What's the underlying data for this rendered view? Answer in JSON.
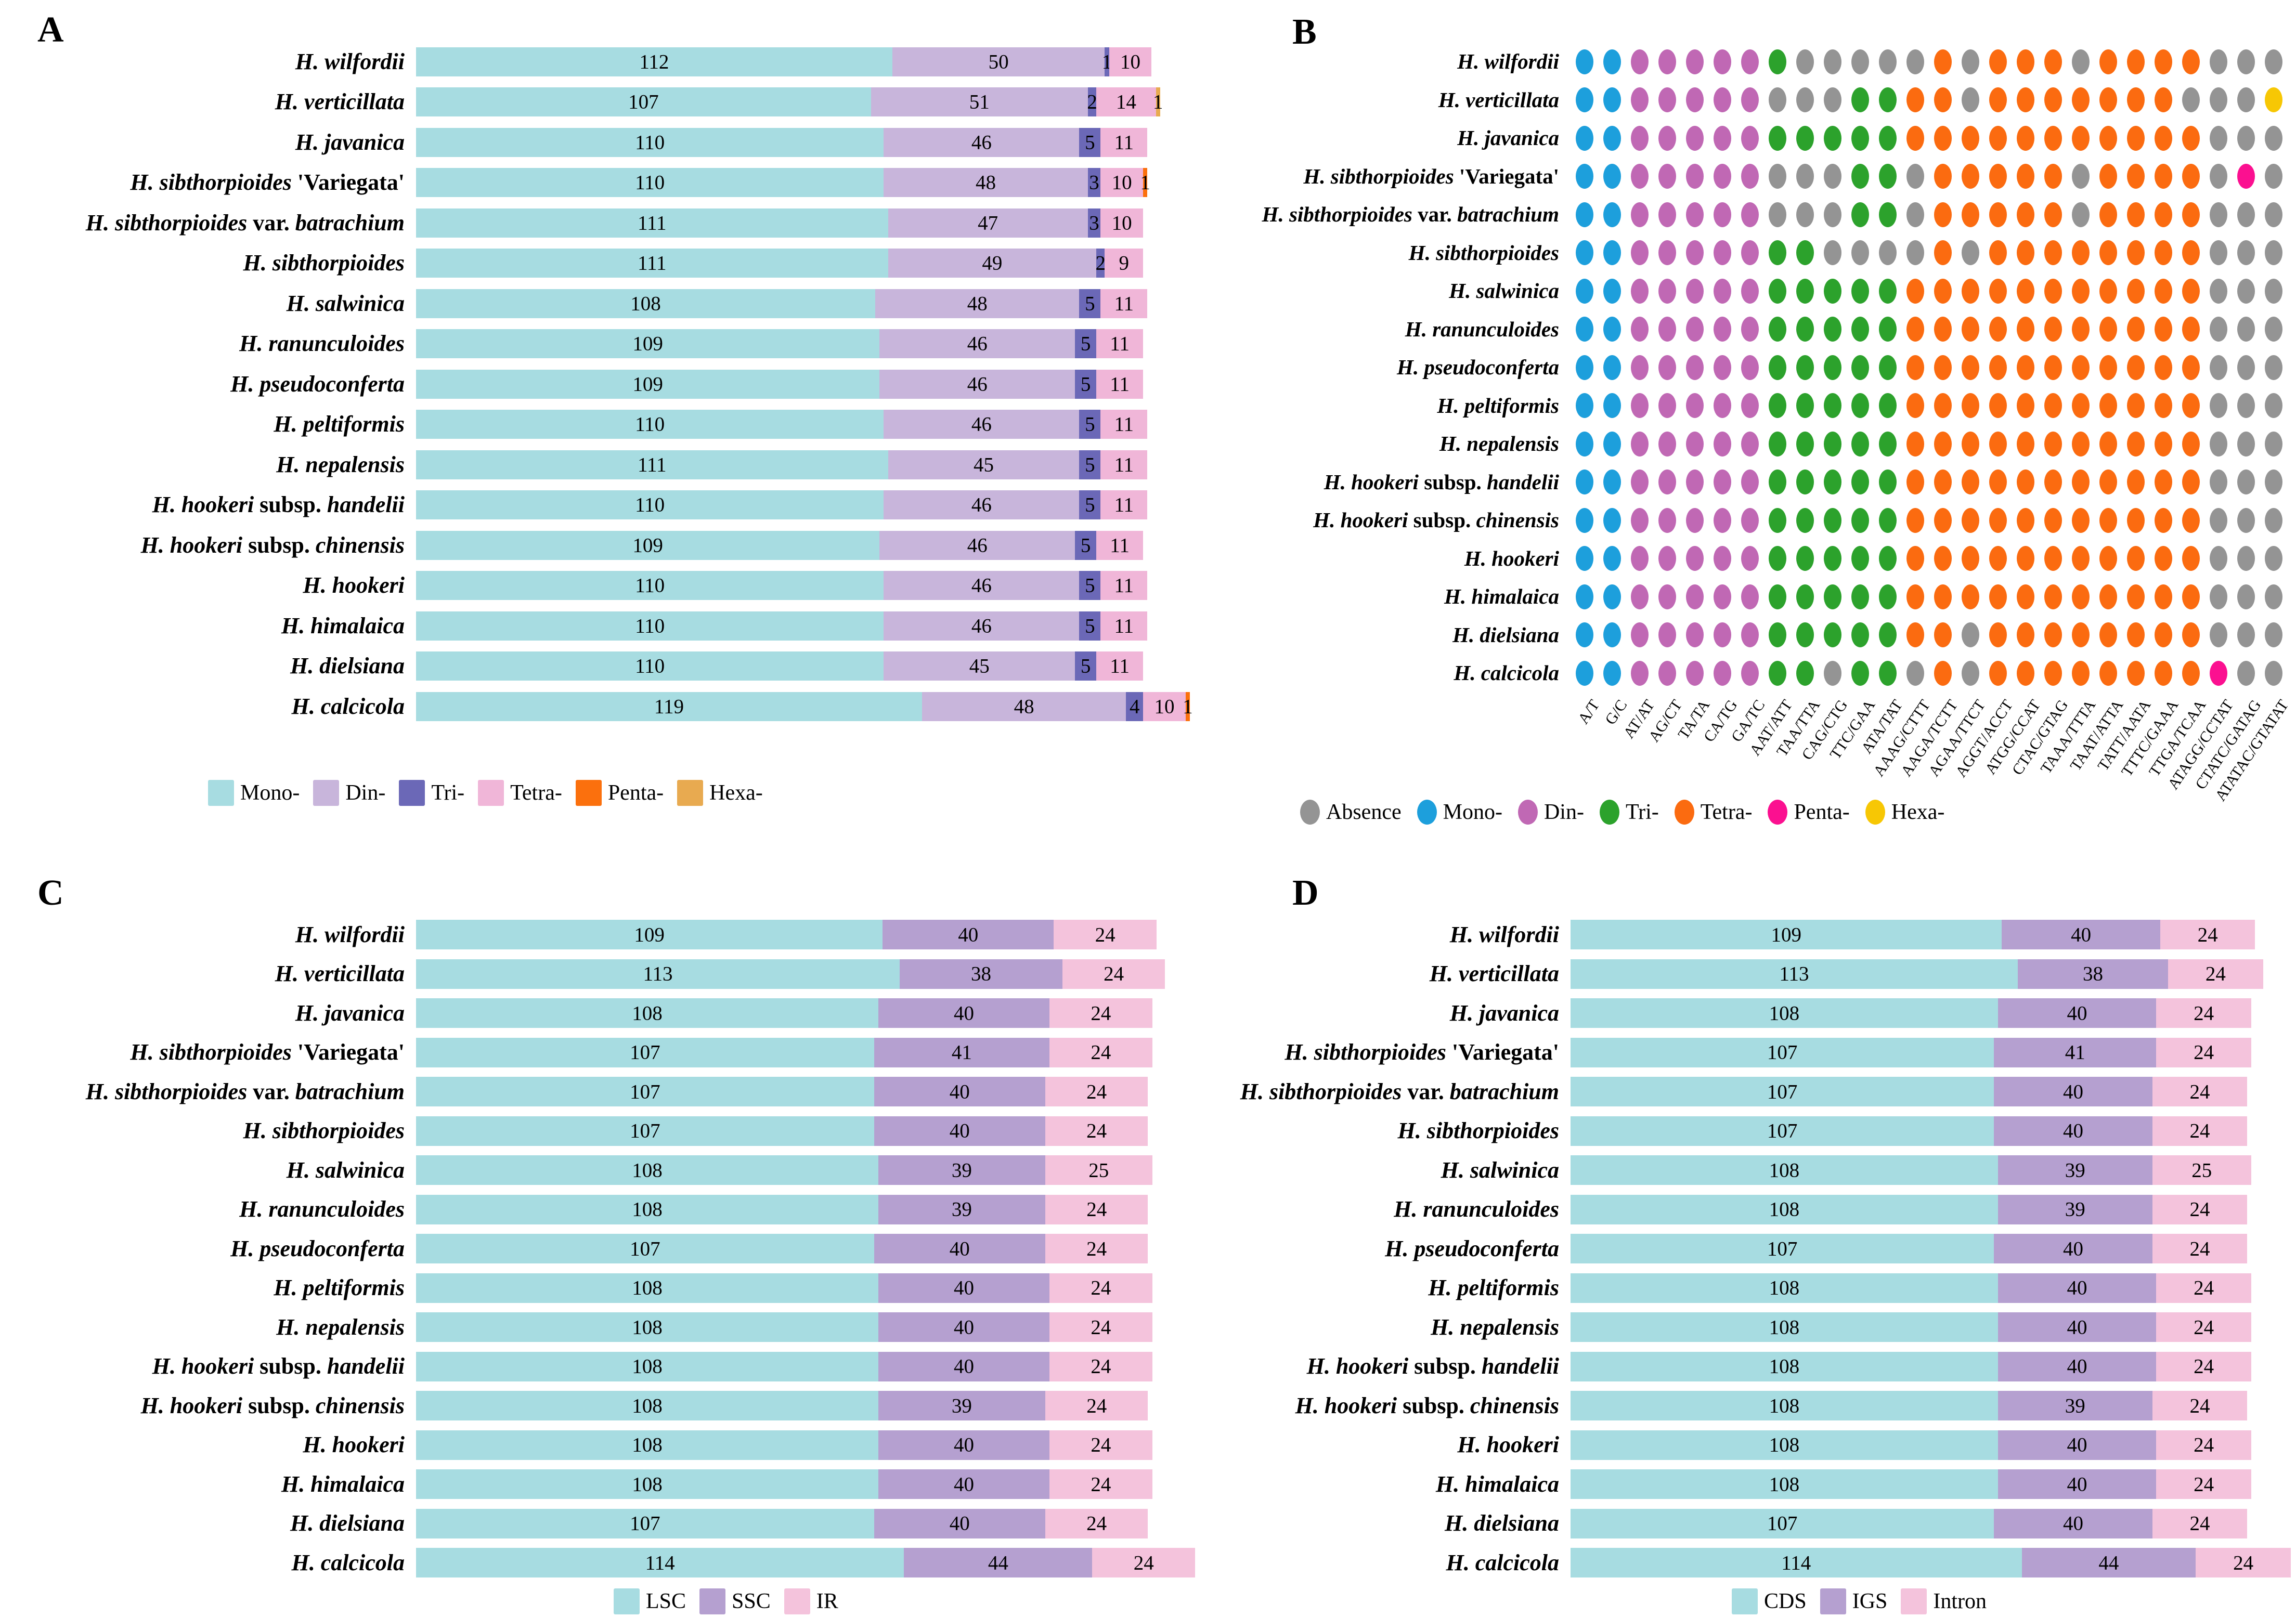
{
  "figure": {
    "panel_letters": {
      "a": "A",
      "b": "B",
      "c": "C",
      "d": "D"
    }
  },
  "species": [
    {
      "name": "H. wilfordii",
      "parts": [
        {
          "text": "H. wilfordii",
          "italic": true
        }
      ]
    },
    {
      "name": "H. verticillata",
      "parts": [
        {
          "text": "H. verticillata",
          "italic": true
        }
      ]
    },
    {
      "name": "H. javanica",
      "parts": [
        {
          "text": "H. javanica",
          "italic": true
        }
      ]
    },
    {
      "name": "H. sibthorpioides 'Variegata'",
      "parts": [
        {
          "text": "H. sibthorpioides",
          "italic": true
        },
        {
          "text": " 'Variegata'",
          "italic": false
        }
      ]
    },
    {
      "name": "H. sibthorpioides var. batrachium",
      "parts": [
        {
          "text": "H. sibthorpioides",
          "italic": true
        },
        {
          "text": " var. ",
          "italic": false
        },
        {
          "text": "batrachium",
          "italic": true
        }
      ]
    },
    {
      "name": "H. sibthorpioides",
      "parts": [
        {
          "text": "H. sibthorpioides",
          "italic": true
        }
      ]
    },
    {
      "name": "H. salwinica",
      "parts": [
        {
          "text": "H. salwinica",
          "italic": true
        }
      ]
    },
    {
      "name": "H. ranunculoides",
      "parts": [
        {
          "text": "H. ranunculoides",
          "italic": true
        }
      ]
    },
    {
      "name": "H. pseudoconferta",
      "parts": [
        {
          "text": "H. pseudoconferta",
          "italic": true
        }
      ]
    },
    {
      "name": "H. peltiformis",
      "parts": [
        {
          "text": "H. peltiformis",
          "italic": true
        }
      ]
    },
    {
      "name": "H. nepalensis",
      "parts": [
        {
          "text": "H. nepalensis",
          "italic": true
        }
      ]
    },
    {
      "name": "H. hookeri subsp. handelii",
      "parts": [
        {
          "text": "H. hookeri",
          "italic": true
        },
        {
          "text": " subsp. ",
          "italic": false
        },
        {
          "text": "handelii",
          "italic": true
        }
      ]
    },
    {
      "name": "H. hookeri subsp. chinensis",
      "parts": [
        {
          "text": "H. hookeri",
          "italic": true
        },
        {
          "text": " subsp. ",
          "italic": false
        },
        {
          "text": "chinensis",
          "italic": true
        }
      ]
    },
    {
      "name": "H. hookeri",
      "parts": [
        {
          "text": "H. hookeri",
          "italic": true
        }
      ]
    },
    {
      "name": "H. himalaica",
      "parts": [
        {
          "text": "H. himalaica",
          "italic": true
        }
      ]
    },
    {
      "name": "H. dielsiana",
      "parts": [
        {
          "text": "H. dielsiana",
          "italic": true
        }
      ]
    },
    {
      "name": "H. calcicola",
      "parts": [
        {
          "text": "H. calcicola",
          "italic": true
        }
      ]
    }
  ],
  "chart_data": [
    {
      "id": "A",
      "panel_label": "A",
      "type": "bar",
      "orientation": "horizontal-stacked",
      "series": [
        "Mono-",
        "Din-",
        "Tri-",
        "Tetra-",
        "Penta-",
        "Hexa-"
      ],
      "colors": [
        "#a7dce1",
        "#c8b5db",
        "#6b68b7",
        "#f0b6d8",
        "#fb700d",
        "#e8aa50"
      ],
      "categories": [
        "H. wilfordii",
        "H. verticillata",
        "H. javanica",
        "H. sibthorpioides 'Variegata'",
        "H. sibthorpioides var. batrachium",
        "H. sibthorpioides",
        "H. salwinica",
        "H. ranunculoides",
        "H. pseudoconferta",
        "H. peltiformis",
        "H. nepalensis",
        "H. hookeri subsp. handelii",
        "H. hookeri subsp. chinensis",
        "H. hookeri",
        "H. himalaica",
        "H. dielsiana",
        "H. calcicola"
      ],
      "values": [
        [
          112,
          50,
          1,
          10,
          0,
          0
        ],
        [
          107,
          51,
          2,
          14,
          0,
          1
        ],
        [
          110,
          46,
          5,
          11,
          0,
          0
        ],
        [
          110,
          48,
          3,
          10,
          1,
          0
        ],
        [
          111,
          47,
          3,
          10,
          0,
          0
        ],
        [
          111,
          49,
          2,
          9,
          0,
          0
        ],
        [
          108,
          48,
          5,
          11,
          0,
          0
        ],
        [
          109,
          46,
          5,
          11,
          0,
          0
        ],
        [
          109,
          46,
          5,
          11,
          0,
          0
        ],
        [
          110,
          46,
          5,
          11,
          0,
          0
        ],
        [
          111,
          45,
          5,
          11,
          0,
          0
        ],
        [
          110,
          46,
          5,
          11,
          0,
          0
        ],
        [
          109,
          46,
          5,
          11,
          0,
          0
        ],
        [
          110,
          46,
          5,
          11,
          0,
          0
        ],
        [
          110,
          46,
          5,
          11,
          0,
          0
        ],
        [
          110,
          45,
          5,
          11,
          0,
          0
        ],
        [
          119,
          48,
          4,
          10,
          1,
          0
        ]
      ],
      "xmax": 182,
      "legend": [
        {
          "label": "Mono-",
          "color": "#a7dce1"
        },
        {
          "label": "Din-",
          "color": "#c8b5db"
        },
        {
          "label": "Tri-",
          "color": "#6b68b7"
        },
        {
          "label": "Tetra-",
          "color": "#f0b6d8"
        },
        {
          "label": "Penta-",
          "color": "#fb700d"
        },
        {
          "label": "Hexa-",
          "color": "#e8aa50"
        }
      ]
    },
    {
      "id": "B",
      "panel_label": "B",
      "type": "heatmap",
      "subtype": "presence-absence dot matrix",
      "rows": [
        "H. wilfordii",
        "H. verticillata",
        "H. javanica",
        "H. sibthorpioides 'Variegata'",
        "H. sibthorpioides var. batrachium",
        "H. sibthorpioides",
        "H. salwinica",
        "H. ranunculoides",
        "H. pseudoconferta",
        "H. peltiformis",
        "H. nepalensis",
        "H. hookeri subsp. handelii",
        "H. hookeri subsp. chinensis",
        "H. hookeri",
        "H. himalaica",
        "H. dielsiana",
        "H. calcicola"
      ],
      "columns": [
        "A/T",
        "G/C",
        "AT/AT",
        "AG/CT",
        "TA/TA",
        "CA/TG",
        "GA/TC",
        "AAT/ATT",
        "TAA/TTA",
        "CAG/CTG",
        "TTC/GAA",
        "ATA/TAT",
        "AAAG/CTTT",
        "AAGA/TCTT",
        "AGAA/TTCT",
        "AGGT/ACCT",
        "ATGG/CCAT",
        "CTAC/GTAG",
        "TAAA/TTTA",
        "TAAT/ATTA",
        "TATT/AATA",
        "TTTC/GAAA",
        "TTGA/TCAA",
        "ATAGG/CCTAT",
        "CTATC/GATAG",
        "ATATAC/GTATAT"
      ],
      "code_colors": {
        "A": "#949494",
        "M": "#1d9fdc",
        "D": "#c068b4",
        "T": "#2ca22c",
        "Q": "#fb6b10",
        "P": "#fb1090",
        "H": "#f7c704"
      },
      "code_names": {
        "A": "Absence",
        "M": "Mono-",
        "D": "Din-",
        "T": "Tri-",
        "Q": "Tetra-",
        "P": "Penta-",
        "H": "Hexa-"
      },
      "cells": [
        "MMDDDDDTAAAAAQAQQQAQQQQAAA",
        "MMDDDDDAAATTQQAQQQQQQQAAAH",
        "MMDDDDDTTTTTQQQQQQQQQQQAAA",
        "MMDDDDDAAATTAQQQQQAQQQQAPA",
        "MMDDDDDAAATTAQQQQQAQQQQAAA",
        "MMDDDDDTTAAAAQAQQQQQQQQAAA",
        "MMDDDDDTTTTTQQQQQQQQQQQAAA",
        "MMDDDDDTTTTTQQQQQQQQQQQAAA",
        "MMDDDDDTTTTTQQQQQQQQQQQAAA",
        "MMDDDDDTTTTTQQQQQQQQQQQAAA",
        "MMDDDDDTTTTTQQQQQQQQQQQAAA",
        "MMDDDDDTTTTTQQQQQQQQQQQAAA",
        "MMDDDDDTTTTTQQQQQQQQQQQAAA",
        "MMDDDDDTTTTTQQQQQQQQQQQAAA",
        "MMDDDDDTTTTTQQQQQQQQQQQAAA",
        "MMDDDDDTTTTTQQAQQQQQQQQAAA",
        "MMDDDDDTTATTAQAQQQQQQQQPAA"
      ],
      "legend": [
        {
          "label": "Absence",
          "color": "#949494"
        },
        {
          "label": "Mono-",
          "color": "#1d9fdc"
        },
        {
          "label": "Din-",
          "color": "#c068b4"
        },
        {
          "label": "Tri-",
          "color": "#2ca22c"
        },
        {
          "label": "Tetra-",
          "color": "#fb6b10"
        },
        {
          "label": "Penta-",
          "color": "#fb1090"
        },
        {
          "label": "Hexa-",
          "color": "#f7c704"
        }
      ]
    },
    {
      "id": "C",
      "panel_label": "C",
      "type": "bar",
      "orientation": "horizontal-stacked",
      "series": [
        "LSC",
        "SSC",
        "IR"
      ],
      "colors": [
        "#a7dce1",
        "#b5a0d0",
        "#f4c3dc"
      ],
      "categories": [
        "H. wilfordii",
        "H. verticillata",
        "H. javanica",
        "H. sibthorpioides 'Variegata'",
        "H. sibthorpioides var. batrachium",
        "H. sibthorpioides",
        "H. salwinica",
        "H. ranunculoides",
        "H. pseudoconferta",
        "H. peltiformis",
        "H. nepalensis",
        "H. hookeri subsp. handelii",
        "H. hookeri subsp. chinensis",
        "H. hookeri",
        "H. himalaica",
        "H. dielsiana",
        "H. calcicola"
      ],
      "values": [
        [
          109,
          40,
          24
        ],
        [
          113,
          38,
          24
        ],
        [
          108,
          40,
          24
        ],
        [
          107,
          41,
          24
        ],
        [
          107,
          40,
          24
        ],
        [
          107,
          40,
          24
        ],
        [
          108,
          39,
          25
        ],
        [
          108,
          39,
          24
        ],
        [
          107,
          40,
          24
        ],
        [
          108,
          40,
          24
        ],
        [
          108,
          40,
          24
        ],
        [
          108,
          40,
          24
        ],
        [
          108,
          39,
          24
        ],
        [
          108,
          40,
          24
        ],
        [
          108,
          40,
          24
        ],
        [
          107,
          40,
          24
        ],
        [
          114,
          44,
          24
        ]
      ],
      "xmax": 182,
      "legend": [
        {
          "label": "LSC",
          "color": "#a7dce1"
        },
        {
          "label": "SSC",
          "color": "#b5a0d0"
        },
        {
          "label": "IR",
          "color": "#f4c3dc"
        }
      ]
    },
    {
      "id": "D",
      "panel_label": "D",
      "type": "bar",
      "orientation": "horizontal-stacked",
      "series": [
        "CDS",
        "IGS",
        "Intron"
      ],
      "colors": [
        "#a7dce1",
        "#b5a0d0",
        "#f4c3dc"
      ],
      "categories": [
        "H. wilfordii",
        "H. verticillata",
        "H. javanica",
        "H. sibthorpioides 'Variegata'",
        "H. sibthorpioides var. batrachium",
        "H. sibthorpioides",
        "H. salwinica",
        "H. ranunculoides",
        "H. pseudoconferta",
        "H. peltiformis",
        "H. nepalensis",
        "H. hookeri subsp. handelii",
        "H. hookeri subsp. chinensis",
        "H. hookeri",
        "H. himalaica",
        "H. dielsiana",
        "H. calcicola"
      ],
      "values": [
        [
          109,
          40,
          24
        ],
        [
          113,
          38,
          24
        ],
        [
          108,
          40,
          24
        ],
        [
          107,
          41,
          24
        ],
        [
          107,
          40,
          24
        ],
        [
          107,
          40,
          24
        ],
        [
          108,
          39,
          25
        ],
        [
          108,
          39,
          24
        ],
        [
          107,
          40,
          24
        ],
        [
          108,
          40,
          24
        ],
        [
          108,
          40,
          24
        ],
        [
          108,
          40,
          24
        ],
        [
          108,
          39,
          24
        ],
        [
          108,
          40,
          24
        ],
        [
          108,
          40,
          24
        ],
        [
          107,
          40,
          24
        ],
        [
          114,
          44,
          24
        ]
      ],
      "xmax": 182,
      "legend": [
        {
          "label": "CDS",
          "color": "#a7dce1"
        },
        {
          "label": "IGS",
          "color": "#b5a0d0"
        },
        {
          "label": "Intron",
          "color": "#f4c3dc"
        }
      ]
    }
  ]
}
